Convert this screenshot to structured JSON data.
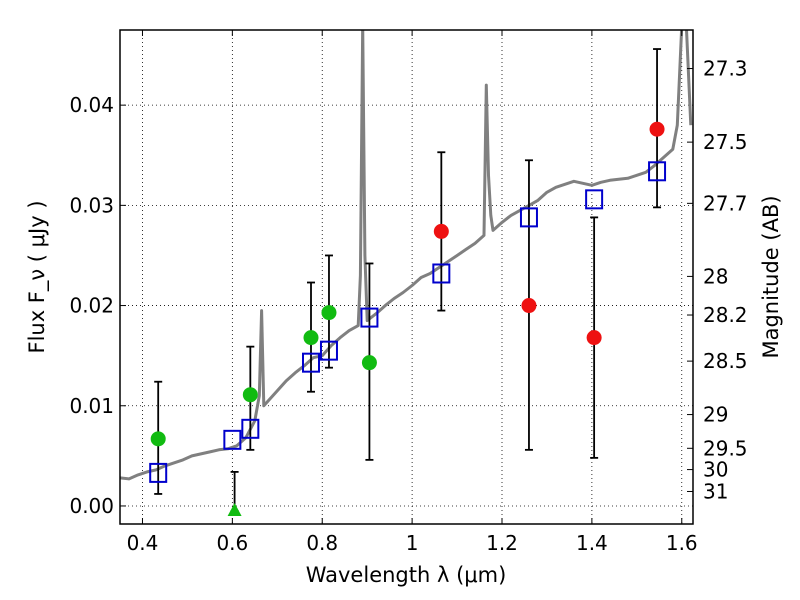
{
  "chart_data": {
    "type": "scatter",
    "xlabel": "Wavelength  λ (μm)",
    "ylabel": "Flux  F_ν  ( μJy )",
    "ylabel_right": "Magnitude (AB)",
    "xlim": [
      0.35,
      1.625
    ],
    "ylim": [
      -0.0018,
      0.0475
    ],
    "grid": true,
    "x_ticks": [
      0.4,
      0.6,
      0.8,
      1.0,
      1.2,
      1.4,
      1.6
    ],
    "x_tick_labels": [
      "0.4",
      "0.6",
      "0.8",
      "1",
      "1.2",
      "1.4",
      "1.6"
    ],
    "y_ticks": [
      0.0,
      0.01,
      0.02,
      0.03,
      0.04
    ],
    "y_tick_labels": [
      "0.00",
      "0.01",
      "0.02",
      "0.03",
      "0.04"
    ],
    "mag_ticks": [
      27.3,
      27.5,
      27.7,
      28,
      28.2,
      28.5,
      29,
      29.5,
      30,
      31
    ],
    "mag_tick_labels": [
      "27.3",
      "27.5",
      "27.7",
      "28",
      "28.2",
      "28.5",
      "29",
      "29.5",
      "30",
      "31"
    ],
    "colors": {
      "template": "#808080",
      "model_box": "#0000cc",
      "green": "#11bb11",
      "red": "#ee1111",
      "errorbar": "#000000"
    },
    "series": [
      {
        "marker": "line",
        "x": [
          0.35,
          0.37,
          0.39,
          0.41,
          0.43,
          0.45,
          0.47,
          0.49,
          0.51,
          0.53,
          0.55,
          0.57,
          0.59,
          0.61,
          0.63,
          0.65,
          0.66,
          0.665,
          0.67,
          0.68,
          0.7,
          0.72,
          0.74,
          0.76,
          0.78,
          0.8,
          0.82,
          0.84,
          0.86,
          0.88,
          0.885,
          0.89,
          0.895,
          0.9,
          0.92,
          0.94,
          0.96,
          0.98,
          1.0,
          1.02,
          1.04,
          1.06,
          1.08,
          1.1,
          1.12,
          1.14,
          1.16,
          1.165,
          1.17,
          1.175,
          1.18,
          1.2,
          1.22,
          1.24,
          1.26,
          1.28,
          1.3,
          1.32,
          1.34,
          1.36,
          1.38,
          1.4,
          1.42,
          1.44,
          1.46,
          1.48,
          1.5,
          1.52,
          1.54,
          1.56,
          1.58,
          1.59,
          1.6,
          1.61,
          1.62
        ],
        "y": [
          0.0028,
          0.0027,
          0.0031,
          0.0034,
          0.0036,
          0.004,
          0.0043,
          0.0046,
          0.005,
          0.0052,
          0.0054,
          0.0056,
          0.0057,
          0.006,
          0.0068,
          0.0085,
          0.011,
          0.0195,
          0.01,
          0.0105,
          0.0115,
          0.0125,
          0.0133,
          0.014,
          0.0148,
          0.015,
          0.016,
          0.0168,
          0.0175,
          0.018,
          0.023,
          0.048,
          0.025,
          0.0185,
          0.0192,
          0.02,
          0.0207,
          0.0213,
          0.022,
          0.0228,
          0.0232,
          0.0238,
          0.0244,
          0.025,
          0.0256,
          0.0262,
          0.027,
          0.042,
          0.033,
          0.029,
          0.0275,
          0.0283,
          0.029,
          0.0295,
          0.03,
          0.0305,
          0.0313,
          0.0318,
          0.0321,
          0.0324,
          0.0322,
          0.032,
          0.0323,
          0.0325,
          0.0326,
          0.0327,
          0.033,
          0.0333,
          0.034,
          0.0348,
          0.0356,
          0.038,
          0.048,
          0.048,
          0.038
        ]
      },
      {
        "marker": "open-square",
        "x": [
          0.435,
          0.6,
          0.64,
          0.775,
          0.815,
          0.905,
          1.065,
          1.26,
          1.405,
          1.545
        ],
        "y": [
          0.0033,
          0.0066,
          0.0077,
          0.0143,
          0.0155,
          0.0188,
          0.0232,
          0.0288,
          0.0306,
          0.0334
        ]
      },
      {
        "marker": "filled-circle",
        "x": [
          0.435,
          0.64,
          0.775,
          0.815,
          0.905
        ],
        "y": [
          0.0067,
          0.0111,
          0.0168,
          0.0193,
          0.0143
        ],
        "err_low": [
          0.0055,
          0.0055,
          0.0054,
          0.0055,
          0.0097
        ],
        "err_high": [
          0.0057,
          0.0048,
          0.0055,
          0.0057,
          0.0099
        ]
      },
      {
        "marker": "filled-circle",
        "x": [
          1.065,
          1.26,
          1.405,
          1.545
        ],
        "y": [
          0.0274,
          0.02,
          0.0168,
          0.0376
        ],
        "err_low": [
          0.0079,
          0.0144,
          0.012,
          0.0078
        ],
        "err_high": [
          0.0079,
          0.0145,
          0.012,
          0.008
        ]
      },
      {
        "marker": "triangle-up",
        "x": [
          0.605
        ],
        "y": [
          -0.0005
        ],
        "err_low": [
          0.0
        ],
        "err_high": [
          0.0039
        ]
      }
    ]
  }
}
